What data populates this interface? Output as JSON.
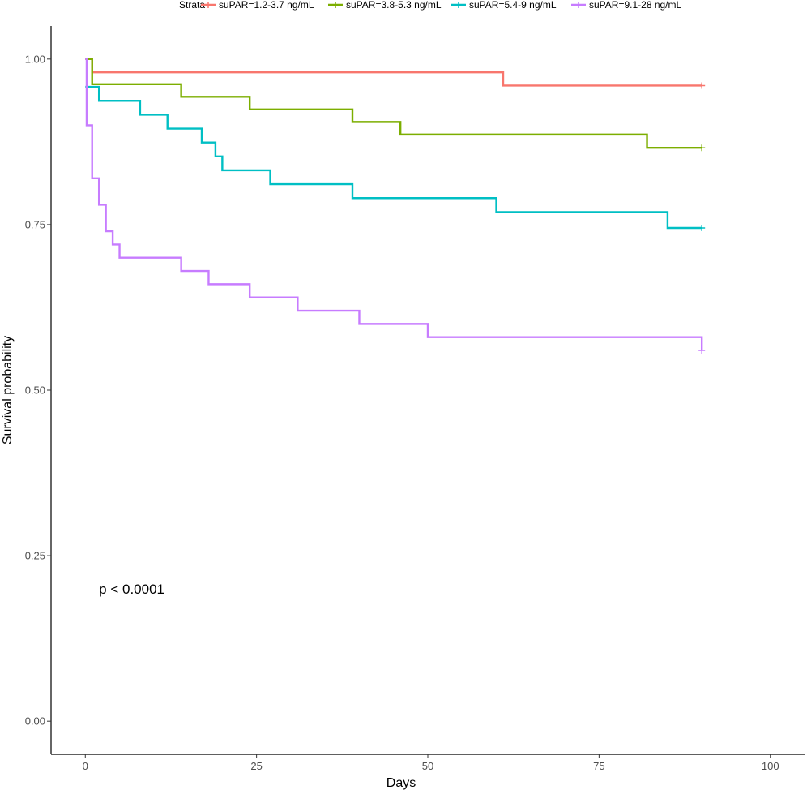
{
  "chart_data": {
    "type": "line",
    "subtype": "kaplan-meier-step",
    "title": "",
    "xlabel": "Days",
    "ylabel": "Survival probability",
    "xlim": [
      -5,
      105
    ],
    "ylim": [
      -0.05,
      1.05
    ],
    "x_ticks": [
      0,
      25,
      50,
      75,
      100
    ],
    "y_ticks": [
      0.0,
      0.25,
      0.5,
      0.75,
      1.0
    ],
    "x_tick_labels": [
      "0",
      "25",
      "50",
      "75",
      "100"
    ],
    "y_tick_labels": [
      "0.00",
      "0.25",
      "0.50",
      "0.75",
      "1.00"
    ],
    "grid": false,
    "legend": {
      "title": "Strata",
      "position": "top"
    },
    "annotation": {
      "text": "p < 0.0001",
      "x": 2,
      "y": 0.2
    },
    "series": [
      {
        "name": "suPAR=1.2-3.7 ng/mL",
        "color": "#F8766D",
        "steps": [
          [
            0,
            1.0
          ],
          [
            1,
            0.98
          ],
          [
            61,
            0.96
          ],
          [
            90,
            0.96
          ]
        ],
        "censor": [
          [
            90,
            0.96
          ]
        ]
      },
      {
        "name": "suPAR=3.8-5.3 ng/mL",
        "color": "#7CAE00",
        "steps": [
          [
            0,
            1.0
          ],
          [
            1,
            0.962
          ],
          [
            14,
            0.943
          ],
          [
            24,
            0.924
          ],
          [
            39,
            0.905
          ],
          [
            46,
            0.886
          ],
          [
            82,
            0.866
          ],
          [
            90,
            0.866
          ]
        ],
        "censor": [
          [
            90,
            0.866
          ]
        ]
      },
      {
        "name": "suPAR=5.4-9 ng/mL",
        "color": "#00BFC4",
        "steps": [
          [
            0,
            0.958
          ],
          [
            2,
            0.937
          ],
          [
            8,
            0.916
          ],
          [
            12,
            0.895
          ],
          [
            17,
            0.874
          ],
          [
            19,
            0.853
          ],
          [
            20,
            0.832
          ],
          [
            27,
            0.811
          ],
          [
            39,
            0.79
          ],
          [
            60,
            0.769
          ],
          [
            85,
            0.745
          ],
          [
            90,
            0.745
          ]
        ],
        "censor": [
          [
            90,
            0.745
          ]
        ]
      },
      {
        "name": "suPAR=9.1-28 ng/mL",
        "color": "#C77CFF",
        "steps": [
          [
            0,
            1.0
          ],
          [
            0.2,
            0.9
          ],
          [
            1,
            0.82
          ],
          [
            2,
            0.78
          ],
          [
            3,
            0.74
          ],
          [
            4,
            0.72
          ],
          [
            5,
            0.7
          ],
          [
            14,
            0.68
          ],
          [
            18,
            0.66
          ],
          [
            24,
            0.64
          ],
          [
            31,
            0.62
          ],
          [
            40,
            0.6
          ],
          [
            50,
            0.58
          ],
          [
            90,
            0.58
          ],
          [
            90,
            0.56
          ]
        ],
        "censor": [
          [
            90,
            0.56
          ]
        ]
      }
    ]
  }
}
